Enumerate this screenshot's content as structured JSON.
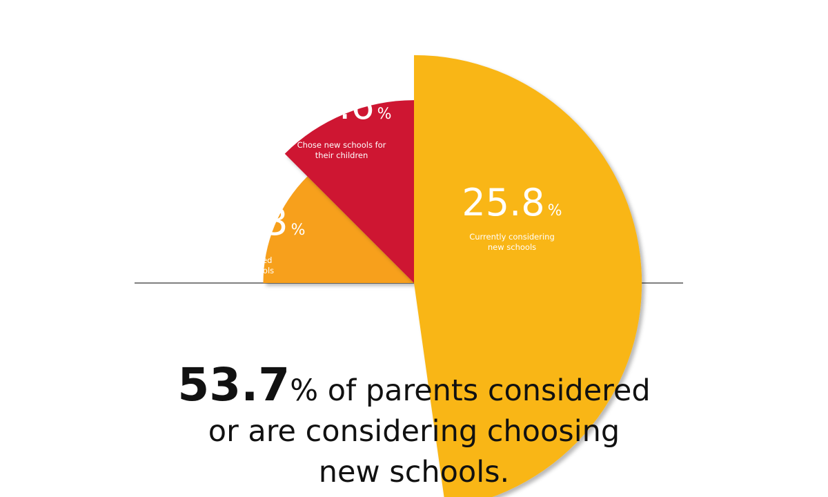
{
  "chart_data": {
    "type": "pie",
    "variant": "rose-semicircle",
    "slices": [
      {
        "label": "Considered new schools",
        "value": 11.3,
        "value_text": "11.3",
        "suffix": "%",
        "color": "#F7A01F",
        "label_lines": [
          "Considered",
          "new schools"
        ]
      },
      {
        "label": "Chose new schools for their children",
        "value": 16.6,
        "value_text": "16.6",
        "suffix": "%",
        "color": "#CE1331",
        "label_lines": [
          "Chose new schools for",
          "their children"
        ]
      },
      {
        "label": "Currently considering new schools",
        "value": 25.8,
        "value_text": "25.8",
        "suffix": "%",
        "color": "#F9B619",
        "label_lines": [
          "Currently considering",
          "new schools"
        ]
      }
    ],
    "baseline_color": "#333333"
  },
  "summary": {
    "highlight": "53.7",
    "line1_rest": "% of parents considered",
    "line2": "or are considering choosing",
    "line3": "new schools."
  }
}
